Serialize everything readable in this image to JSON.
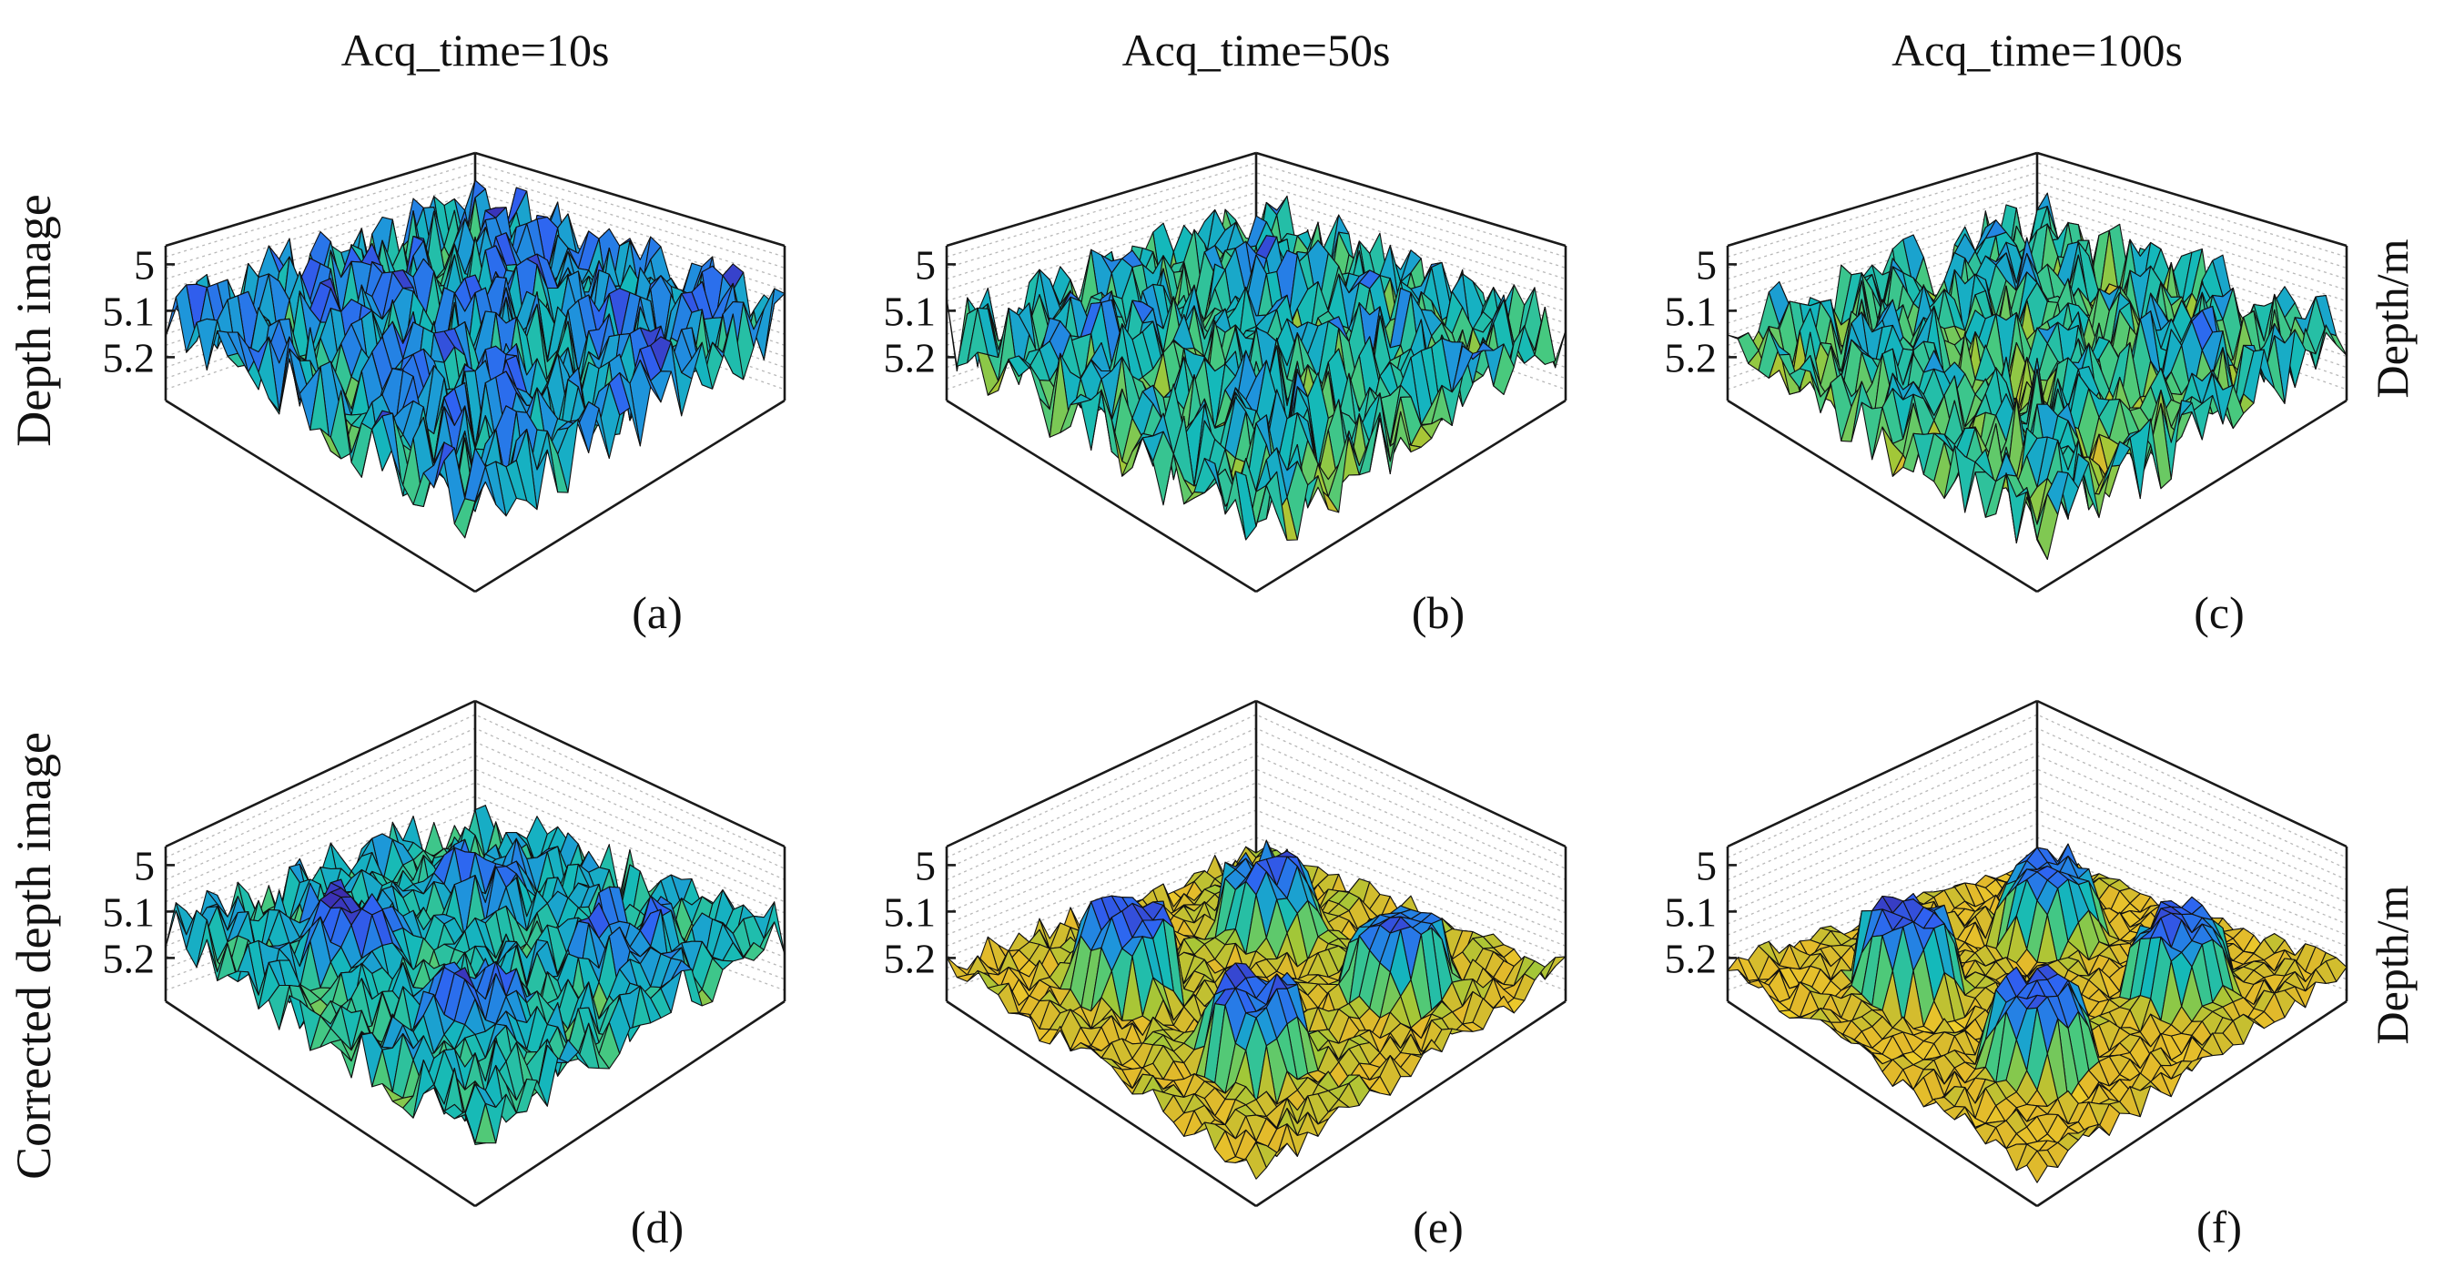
{
  "figure": {
    "column_titles": [
      "Acq_time=10s",
      "Acq_time=50s",
      "Acq_time=100s"
    ],
    "row_labels": [
      "Depth image",
      "Corrected depth image"
    ],
    "right_labels": [
      "Depth/m",
      "Depth/m"
    ]
  },
  "colors": {
    "colormap": [
      "#3e26a8",
      "#2f62f2",
      "#1e95db",
      "#14b9ba",
      "#47c97f",
      "#a0c838",
      "#e2b92b",
      "#f5d82a"
    ],
    "frame": "#1a1a1a",
    "grid": "#b8b8b8"
  },
  "chart_data": [
    {
      "type": "surface",
      "panel_label": "(a)",
      "acq_time_s": 10,
      "row": "Depth image",
      "zlabel": "Depth/m",
      "zticks": [
        "5",
        "5.1",
        "5.2"
      ],
      "zlim": [
        5.25,
        5.0
      ],
      "noise_level": 0.9,
      "target_contrast": 0.25,
      "base_level": 0.35,
      "targets": [
        {
          "u": 0.3,
          "v": 0.28,
          "r": 0.12,
          "depth": 0.05
        },
        {
          "u": 0.72,
          "v": 0.32,
          "r": 0.12,
          "depth": 0.12
        },
        {
          "u": 0.3,
          "v": 0.7,
          "r": 0.12,
          "depth": 0.08
        },
        {
          "u": 0.72,
          "v": 0.74,
          "r": 0.12,
          "depth": 0.1
        }
      ]
    },
    {
      "type": "surface",
      "panel_label": "(b)",
      "acq_time_s": 50,
      "row": "Depth image",
      "zlabel": "",
      "zticks": [
        "5",
        "5.1",
        "5.2"
      ],
      "zlim": [
        5.25,
        5.0
      ],
      "noise_level": 0.85,
      "target_contrast": 0.3,
      "base_level": 0.5,
      "targets": [
        {
          "u": 0.3,
          "v": 0.28,
          "r": 0.12,
          "depth": 0.05
        },
        {
          "u": 0.72,
          "v": 0.32,
          "r": 0.12,
          "depth": 0.12
        },
        {
          "u": 0.3,
          "v": 0.7,
          "r": 0.12,
          "depth": 0.08
        },
        {
          "u": 0.72,
          "v": 0.74,
          "r": 0.12,
          "depth": 0.1
        }
      ]
    },
    {
      "type": "surface",
      "panel_label": "(c)",
      "acq_time_s": 100,
      "row": "Depth image",
      "zlabel": "Depth/m",
      "zticks": [
        "5",
        "5.1",
        "5.2"
      ],
      "zlim": [
        5.25,
        5.0
      ],
      "noise_level": 0.8,
      "target_contrast": 0.35,
      "base_level": 0.55,
      "targets": [
        {
          "u": 0.3,
          "v": 0.28,
          "r": 0.12,
          "depth": 0.05
        },
        {
          "u": 0.72,
          "v": 0.32,
          "r": 0.12,
          "depth": 0.12
        },
        {
          "u": 0.3,
          "v": 0.7,
          "r": 0.12,
          "depth": 0.08
        },
        {
          "u": 0.72,
          "v": 0.74,
          "r": 0.12,
          "depth": 0.1
        }
      ]
    },
    {
      "type": "surface",
      "panel_label": "(d)",
      "acq_time_s": 10,
      "row": "Corrected depth image",
      "zlabel": "",
      "zticks": [
        "5",
        "5.1",
        "5.2"
      ],
      "zlim": [
        5.25,
        5.0
      ],
      "noise_level": 0.55,
      "target_contrast": 0.7,
      "base_level": 0.45,
      "targets": [
        {
          "u": 0.3,
          "v": 0.28,
          "r": 0.13,
          "depth": 0.02
        },
        {
          "u": 0.72,
          "v": 0.32,
          "r": 0.13,
          "depth": 0.12
        },
        {
          "u": 0.3,
          "v": 0.7,
          "r": 0.13,
          "depth": 0.06
        },
        {
          "u": 0.72,
          "v": 0.74,
          "r": 0.13,
          "depth": 0.1
        }
      ]
    },
    {
      "type": "surface",
      "panel_label": "(e)",
      "acq_time_s": 50,
      "row": "Corrected depth image",
      "zlabel": "",
      "zticks": [
        "5",
        "5.1",
        "5.2"
      ],
      "zlim": [
        5.25,
        5.0
      ],
      "noise_level": 0.3,
      "target_contrast": 0.9,
      "base_level": 0.82,
      "targets": [
        {
          "u": 0.3,
          "v": 0.28,
          "r": 0.13,
          "depth": 0.02
        },
        {
          "u": 0.72,
          "v": 0.32,
          "r": 0.13,
          "depth": 0.12
        },
        {
          "u": 0.3,
          "v": 0.7,
          "r": 0.13,
          "depth": 0.06
        },
        {
          "u": 0.72,
          "v": 0.74,
          "r": 0.13,
          "depth": 0.1
        }
      ]
    },
    {
      "type": "surface",
      "panel_label": "(f)",
      "acq_time_s": 100,
      "row": "Corrected depth image",
      "zlabel": "Depth/m",
      "zticks": [
        "5",
        "5.1",
        "5.2"
      ],
      "zlim": [
        5.25,
        5.0
      ],
      "noise_level": 0.25,
      "target_contrast": 0.92,
      "base_level": 0.85,
      "targets": [
        {
          "u": 0.3,
          "v": 0.28,
          "r": 0.13,
          "depth": 0.02
        },
        {
          "u": 0.72,
          "v": 0.32,
          "r": 0.13,
          "depth": 0.12
        },
        {
          "u": 0.3,
          "v": 0.7,
          "r": 0.13,
          "depth": 0.06
        },
        {
          "u": 0.72,
          "v": 0.74,
          "r": 0.13,
          "depth": 0.1
        }
      ]
    }
  ]
}
